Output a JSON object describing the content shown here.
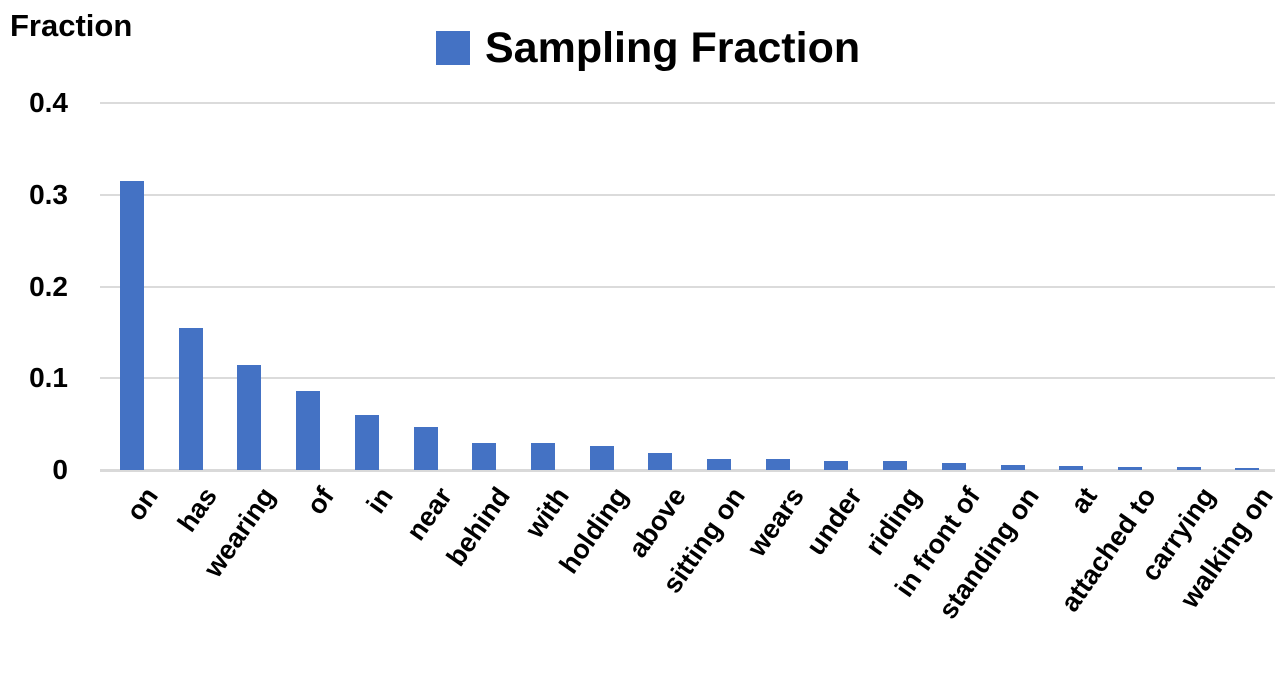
{
  "chart_data": {
    "type": "bar",
    "y_axis_title": "Fraction",
    "legend": [
      {
        "label": "Sampling Fraction",
        "color": "#4472C4"
      }
    ],
    "legend_position": "top-center",
    "categories": [
      "on",
      "has",
      "wearing",
      "of",
      "in",
      "near",
      "behind",
      "with",
      "holding",
      "above",
      "sitting on",
      "wears",
      "under",
      "riding",
      "in front of",
      "standing on",
      "at",
      "attached to",
      "carrying",
      "walking on"
    ],
    "values": [
      0.315,
      0.155,
      0.114,
      0.086,
      0.06,
      0.047,
      0.029,
      0.029,
      0.026,
      0.018,
      0.012,
      0.0115,
      0.01,
      0.0095,
      0.008,
      0.005,
      0.004,
      0.0035,
      0.003,
      0.0025
    ],
    "ylim": [
      0,
      0.4
    ],
    "yticks": [
      0,
      0.1,
      0.2,
      0.3,
      0.4
    ],
    "ytick_labels": [
      "0",
      "0.1",
      "0.2",
      "0.3",
      "0.4"
    ],
    "grid": true,
    "x_label_rotation_deg": 55,
    "colors": {
      "bar": "#4472C4",
      "gridline": "#DBDBDB",
      "axis_baseline": "#D9D9D9",
      "text": "#000000",
      "background": "#FFFFFF"
    }
  }
}
